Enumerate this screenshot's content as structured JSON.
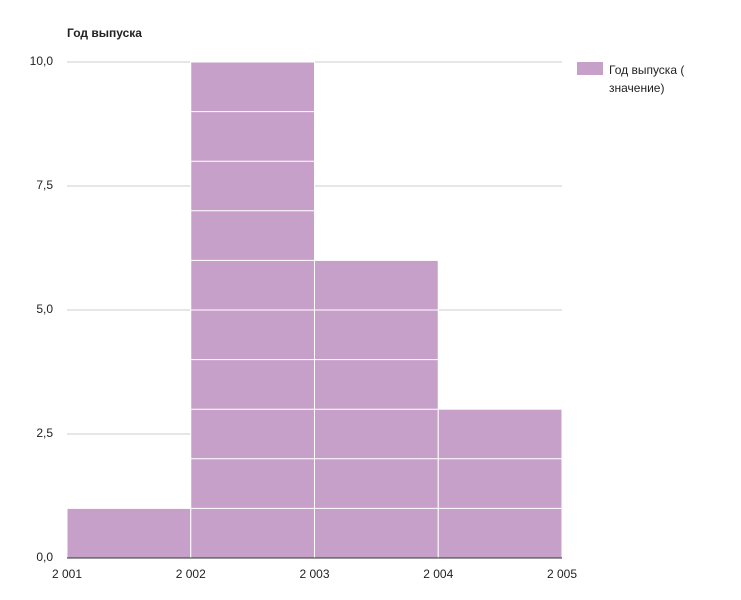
{
  "chart_data": {
    "type": "histogram",
    "title": "Год выпуска",
    "bins": [
      2001,
      2002,
      2003,
      2004,
      2005
    ],
    "series": [
      {
        "name": "Год выпуска ( значение)",
        "color": "#c6a0c9",
        "values": [
          1,
          10,
          6,
          3
        ]
      }
    ],
    "xlim": [
      2001,
      2005
    ],
    "xticks": [
      {
        "value": 2001,
        "label": "2 001"
      },
      {
        "value": 2002,
        "label": "2 002"
      },
      {
        "value": 2003,
        "label": "2 003"
      },
      {
        "value": 2004,
        "label": "2 004"
      },
      {
        "value": 2005,
        "label": "2 005"
      }
    ],
    "ylim": [
      0,
      10
    ],
    "yticks": [
      {
        "value": 0,
        "label": "0,0"
      },
      {
        "value": 2.5,
        "label": "2,5"
      },
      {
        "value": 5,
        "label": "5,0"
      },
      {
        "value": 7.5,
        "label": "7,5"
      },
      {
        "value": 10,
        "label": "10,0"
      }
    ],
    "grid": true,
    "legend": "right"
  }
}
